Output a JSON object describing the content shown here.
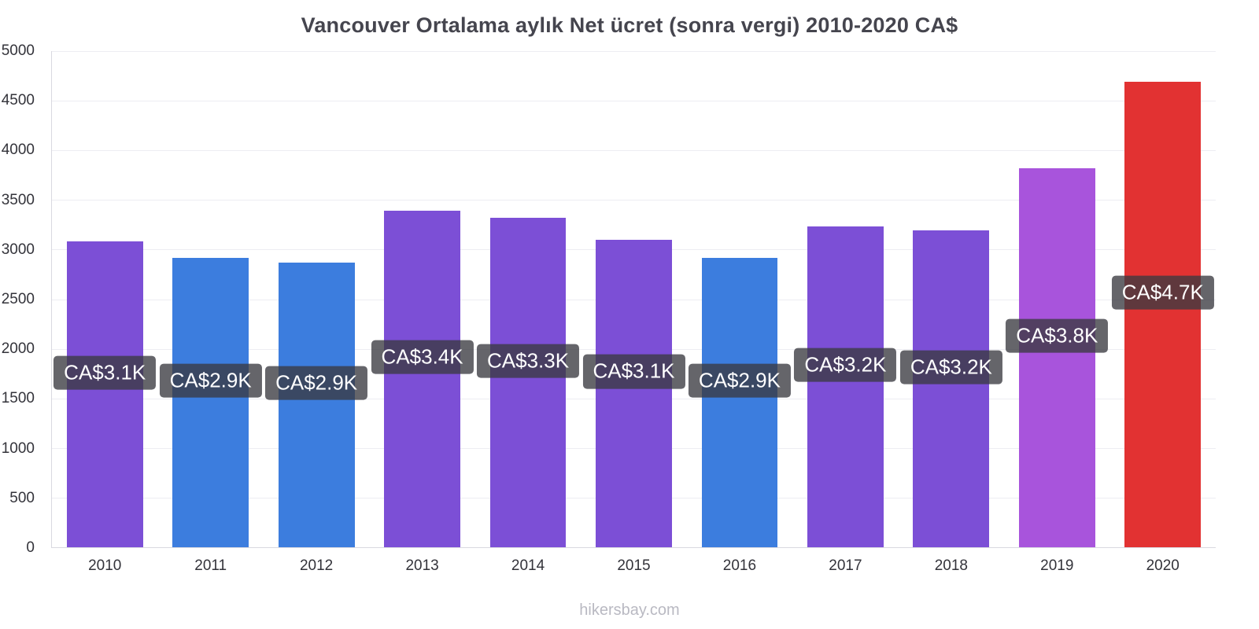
{
  "page": {
    "footer": "hikersbay.com"
  },
  "chart_data": {
    "type": "bar",
    "title": "Vancouver Ortalama aylık Net ücret (sonra vergi) 2010-2020 CA$",
    "xlabel": "",
    "ylabel": "",
    "categories": [
      "2010",
      "2011",
      "2012",
      "2013",
      "2014",
      "2015",
      "2016",
      "2017",
      "2018",
      "2019",
      "2020"
    ],
    "values": [
      3080,
      2920,
      2870,
      3390,
      3320,
      3100,
      2920,
      3230,
      3190,
      3820,
      4690
    ],
    "bar_labels": [
      "CA$3.1K",
      "CA$2.9K",
      "CA$2.9K",
      "CA$3.4K",
      "CA$3.3K",
      "CA$3.1K",
      "CA$2.9K",
      "CA$3.2K",
      "CA$3.2K",
      "CA$3.8K",
      "CA$4.7K"
    ],
    "bar_colors": [
      "#7C4FD6",
      "#3C7DDE",
      "#3C7DDE",
      "#7C4FD6",
      "#7C4FD6",
      "#7C4FD6",
      "#3C7DDE",
      "#7C4FD6",
      "#7C4FD6",
      "#A854DC",
      "#E23232"
    ],
    "ylim": [
      0,
      5000
    ],
    "yticks": [
      0,
      500,
      1000,
      1500,
      2000,
      2500,
      3000,
      3500,
      4000,
      4500,
      5000
    ],
    "grid": true,
    "legend": false,
    "colors": {
      "title_text": "#45454e",
      "axis_text": "#33333a",
      "gridline": "#ededf2",
      "label_bg": "rgba(58,58,64,0.78)",
      "label_text": "#ffffff",
      "footer_text": "#b9b9c2"
    }
  }
}
